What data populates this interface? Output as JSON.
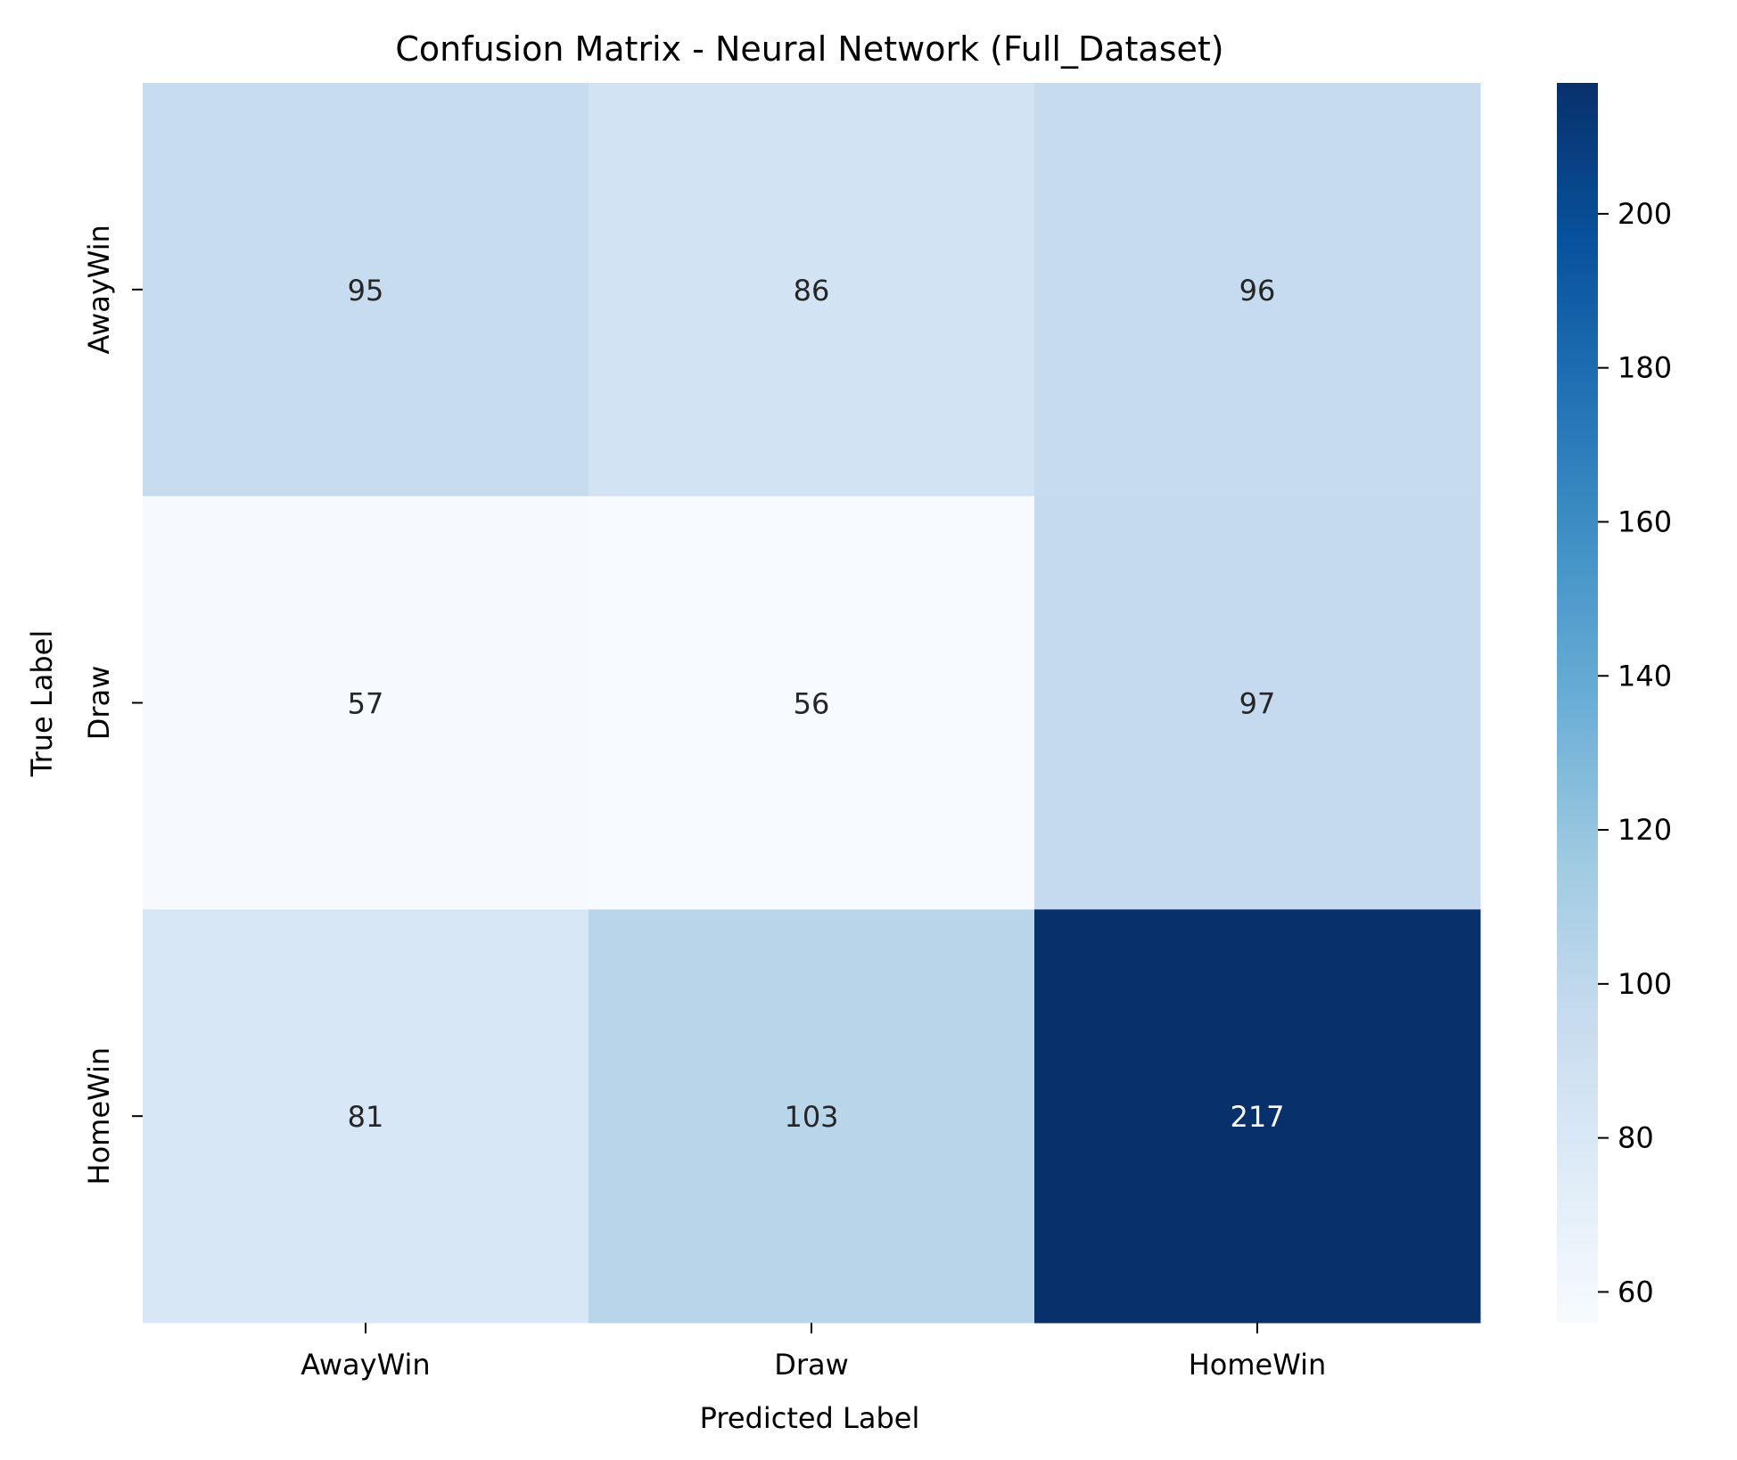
{
  "chart_data": {
    "type": "heatmap",
    "title": "Confusion Matrix - Neural Network (Full_Dataset)",
    "xlabel": "Predicted Label",
    "ylabel": "True Label",
    "x_categories": [
      "AwayWin",
      "Draw",
      "HomeWin"
    ],
    "y_categories": [
      "AwayWin",
      "Draw",
      "HomeWin"
    ],
    "values": [
      [
        95,
        86,
        96
      ],
      [
        57,
        56,
        97
      ],
      [
        81,
        103,
        217
      ]
    ],
    "colormap": "Blues",
    "color_range": [
      56,
      217
    ],
    "colorbar_ticks": [
      60,
      80,
      100,
      120,
      140,
      160,
      180,
      200
    ],
    "colors": {
      "dark_text": "#262626",
      "light_text": "#ffffff",
      "axis": "#000000"
    }
  }
}
